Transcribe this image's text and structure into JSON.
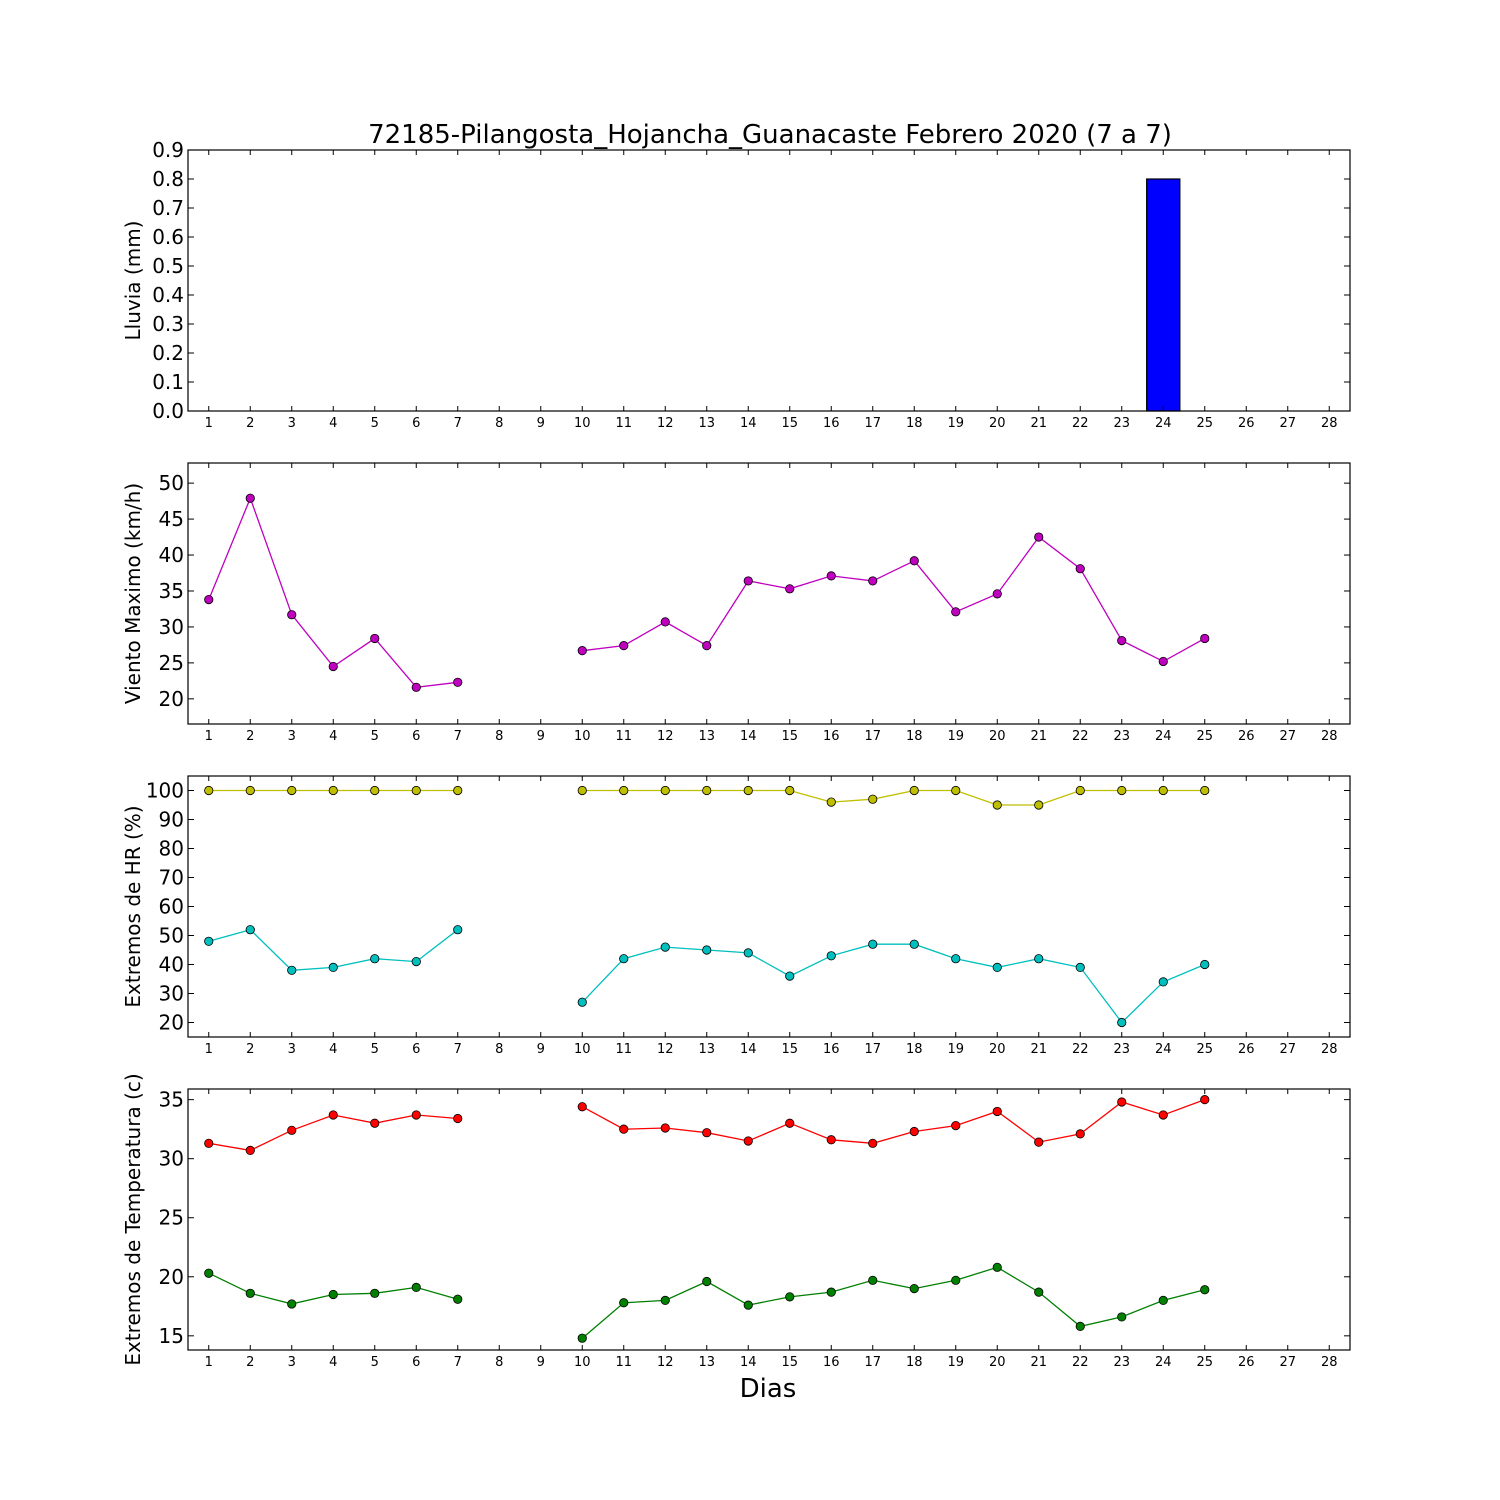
{
  "title": "72185-Pilangosta_Hojancha_Guanacaste Febrero 2020  (7 a 7)",
  "xlabel": "Dias",
  "chart_data": [
    {
      "type": "bar",
      "ylabel": "Lluvia (mm)",
      "ylim": [
        0,
        0.9
      ],
      "yticks": [
        0.0,
        0.1,
        0.2,
        0.3,
        0.4,
        0.5,
        0.6,
        0.7,
        0.8,
        0.9
      ],
      "ytick_labels": [
        "0.0",
        "0.1",
        "0.2",
        "0.3",
        "0.4",
        "0.5",
        "0.6",
        "0.7",
        "0.8",
        "0.9"
      ],
      "x": [
        1,
        2,
        3,
        4,
        5,
        6,
        7,
        8,
        9,
        10,
        11,
        12,
        13,
        14,
        15,
        16,
        17,
        18,
        19,
        20,
        21,
        22,
        23,
        24,
        25,
        26,
        27,
        28
      ],
      "xlim": [
        0.5,
        28.5
      ],
      "series": [
        {
          "color": "#0000ff",
          "values": [
            0,
            0,
            0,
            0,
            0,
            0,
            0,
            null,
            null,
            0,
            0,
            0,
            0,
            0,
            0,
            0,
            0,
            0,
            0,
            0,
            0,
            0,
            0,
            0.8,
            0,
            null,
            null,
            null
          ]
        }
      ]
    },
    {
      "type": "line",
      "ylabel": "Viento Maximo (km/h)",
      "ylim": [
        16.5,
        52.8
      ],
      "yticks": [
        20,
        25,
        30,
        35,
        40,
        45,
        50
      ],
      "ytick_labels": [
        "20",
        "25",
        "30",
        "35",
        "40",
        "45",
        "50"
      ],
      "x": [
        1,
        2,
        3,
        4,
        5,
        6,
        7,
        8,
        9,
        10,
        11,
        12,
        13,
        14,
        15,
        16,
        17,
        18,
        19,
        20,
        21,
        22,
        23,
        24,
        25,
        26,
        27,
        28
      ],
      "xlim": [
        0.5,
        28.5
      ],
      "series": [
        {
          "color": "#bf00bf",
          "values": [
            33.8,
            47.9,
            31.7,
            24.5,
            28.4,
            21.6,
            22.3,
            null,
            null,
            26.7,
            27.4,
            30.7,
            27.4,
            36.4,
            35.3,
            37.1,
            36.4,
            39.2,
            32.1,
            34.6,
            42.5,
            38.1,
            28.1,
            25.2,
            28.4,
            null,
            null,
            null
          ]
        }
      ]
    },
    {
      "type": "line",
      "ylabel": "Extremos de HR (%)",
      "ylim": [
        15,
        105
      ],
      "yticks": [
        20,
        30,
        40,
        50,
        60,
        70,
        80,
        90,
        100
      ],
      "ytick_labels": [
        "20",
        "30",
        "40",
        "50",
        "60",
        "70",
        "80",
        "90",
        "100"
      ],
      "x": [
        1,
        2,
        3,
        4,
        5,
        6,
        7,
        8,
        9,
        10,
        11,
        12,
        13,
        14,
        15,
        16,
        17,
        18,
        19,
        20,
        21,
        22,
        23,
        24,
        25,
        26,
        27,
        28
      ],
      "xlim": [
        0.5,
        28.5
      ],
      "series": [
        {
          "color": "#bfbf00",
          "values": [
            100,
            100,
            100,
            100,
            100,
            100,
            100,
            null,
            null,
            100,
            100,
            100,
            100,
            100,
            100,
            96,
            97,
            100,
            100,
            95,
            95,
            100,
            100,
            100,
            100,
            null,
            null,
            null
          ]
        },
        {
          "color": "#00bfbf",
          "values": [
            48,
            52,
            38,
            39,
            42,
            41,
            52,
            null,
            null,
            27,
            42,
            46,
            45,
            44,
            36,
            43,
            47,
            47,
            42,
            39,
            42,
            39,
            20,
            34,
            40,
            null,
            null,
            null
          ]
        }
      ]
    },
    {
      "type": "line",
      "ylabel": "Extremos de Temperatura (c)",
      "ylim": [
        13.8,
        35.9
      ],
      "yticks": [
        15,
        20,
        25,
        30,
        35
      ],
      "ytick_labels": [
        "15",
        "20",
        "25",
        "30",
        "35"
      ],
      "x": [
        1,
        2,
        3,
        4,
        5,
        6,
        7,
        8,
        9,
        10,
        11,
        12,
        13,
        14,
        15,
        16,
        17,
        18,
        19,
        20,
        21,
        22,
        23,
        24,
        25,
        26,
        27,
        28
      ],
      "xlim": [
        0.5,
        28.5
      ],
      "series": [
        {
          "color": "#ff0000",
          "values": [
            31.3,
            30.7,
            32.4,
            33.7,
            33.0,
            33.7,
            33.4,
            null,
            null,
            34.4,
            32.5,
            32.6,
            32.2,
            31.5,
            33.0,
            31.6,
            31.3,
            32.3,
            32.8,
            34.0,
            31.4,
            32.1,
            34.8,
            33.7,
            35.0,
            null,
            null,
            null
          ]
        },
        {
          "color": "#008000",
          "values": [
            20.3,
            18.6,
            17.7,
            18.5,
            18.6,
            19.1,
            18.1,
            null,
            null,
            14.8,
            17.8,
            18.0,
            19.6,
            17.6,
            18.3,
            18.7,
            19.7,
            19.0,
            19.7,
            20.8,
            18.7,
            15.8,
            16.6,
            18.0,
            18.9,
            null,
            null,
            null
          ]
        }
      ]
    }
  ]
}
